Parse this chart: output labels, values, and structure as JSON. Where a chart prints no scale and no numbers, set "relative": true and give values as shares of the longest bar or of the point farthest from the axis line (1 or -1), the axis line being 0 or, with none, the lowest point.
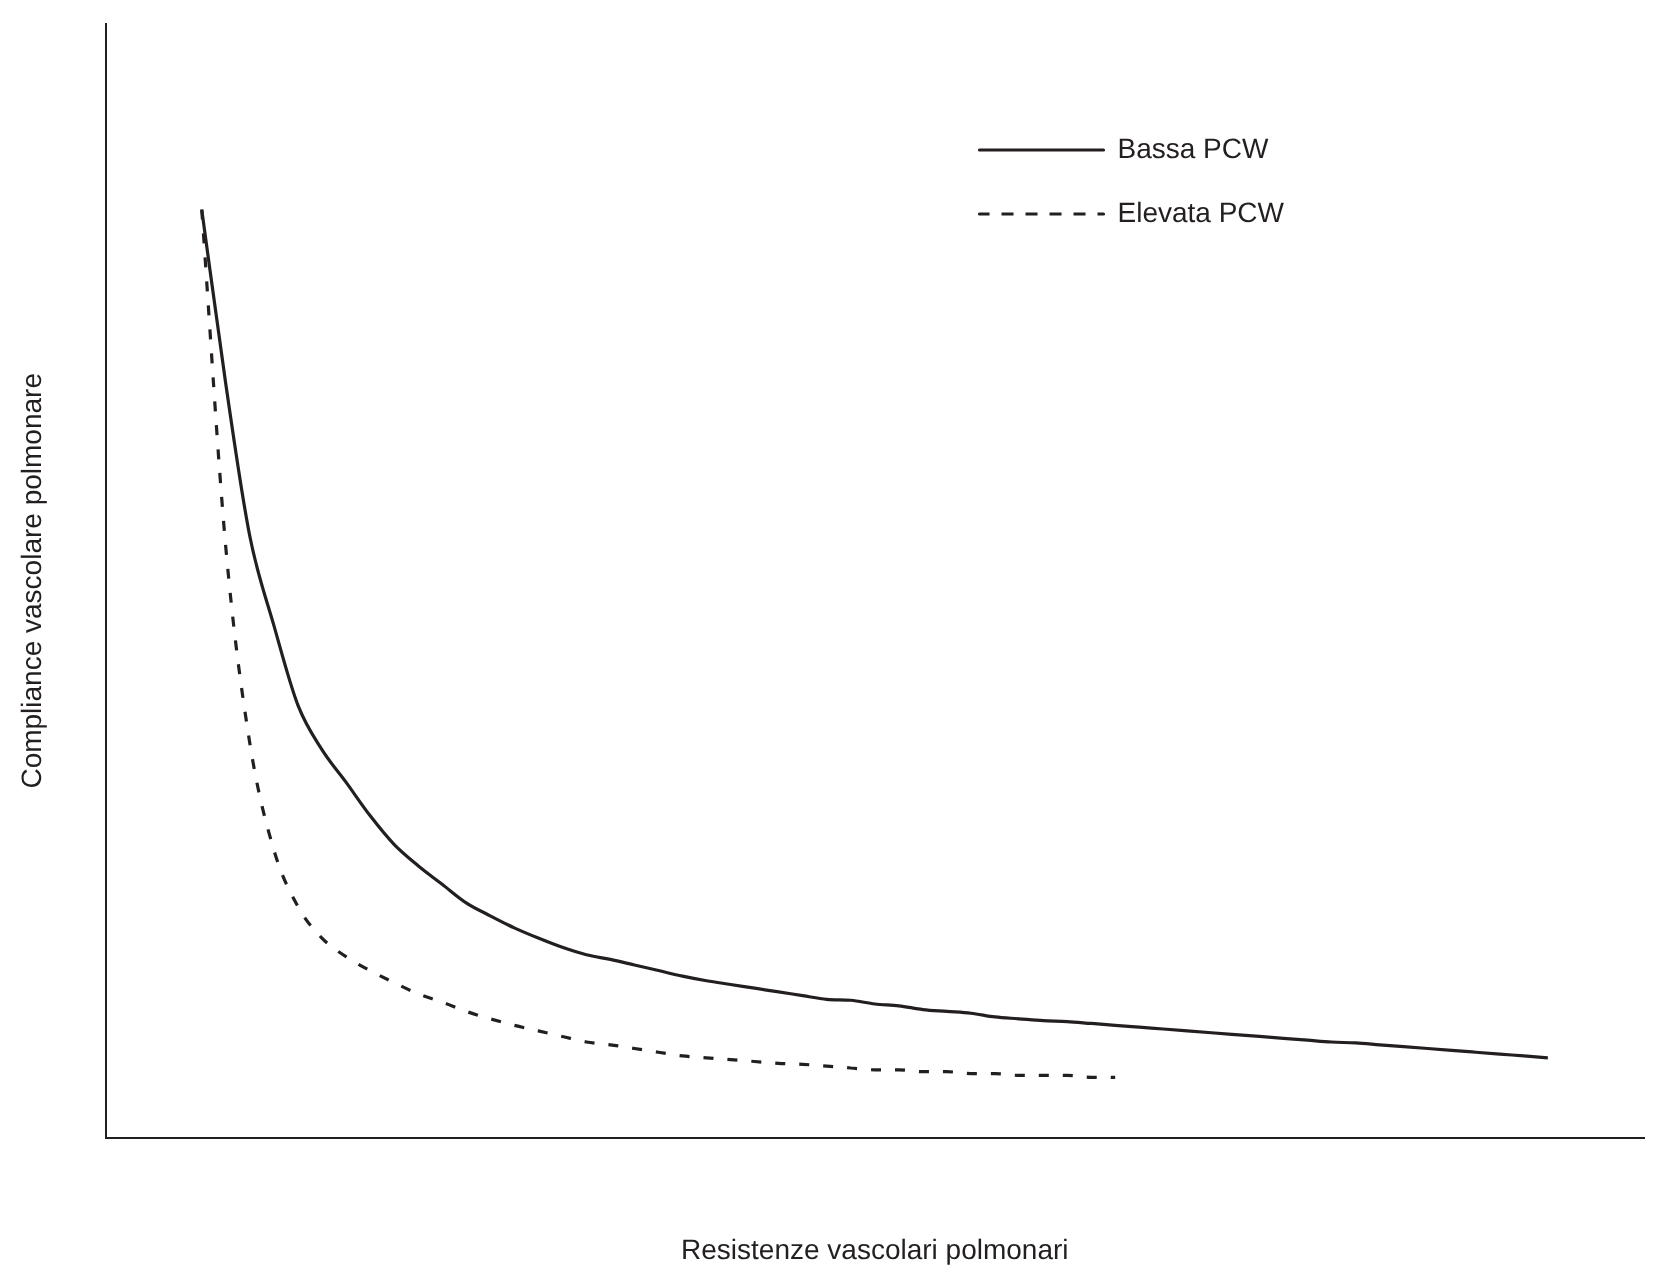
{
  "chart_data": {
    "type": "line",
    "relative": true,
    "xlabel": "Resistenze vascolari polmonari",
    "ylabel": "Compliance vascolare polmonare",
    "legend": "top right",
    "marker": "none",
    "grid": false,
    "categories": [
      null,
      null,
      null,
      null,
      null,
      null,
      null,
      null,
      null,
      null,
      null,
      null,
      null,
      null,
      null,
      null,
      null,
      null,
      null,
      null,
      null,
      null,
      null,
      null,
      null,
      null,
      null,
      null,
      null,
      null,
      null,
      null,
      null,
      null,
      null,
      null,
      null,
      null,
      null,
      null,
      null,
      null,
      null,
      null,
      null,
      null,
      null,
      null,
      null,
      null,
      null,
      null,
      null,
      null,
      null,
      null,
      null,
      null,
      null,
      null,
      null,
      null,
      null,
      null,
      null
    ],
    "series": [
      {
        "name": "Bassa PCW",
        "color": "#231f20",
        "line_style": "solid",
        "values": [
          null,
          null,
          null,
          null,
          1.0,
          0.812,
          0.648,
          0.552,
          0.466,
          0.418,
          0.383,
          0.347,
          0.316,
          0.293,
          0.273,
          0.253,
          0.239,
          0.226,
          0.215,
          0.205,
          0.197,
          0.192,
          0.186,
          0.18,
          0.174,
          0.169,
          0.165,
          0.161,
          0.157,
          0.153,
          0.149,
          0.148,
          0.144,
          0.142,
          0.138,
          0.136,
          0.134,
          0.13,
          0.128,
          0.126,
          0.125,
          0.123,
          0.121,
          0.119,
          0.117,
          0.115,
          0.113,
          0.111,
          0.109,
          0.107,
          0.105,
          0.103,
          0.102,
          0.1,
          0.098,
          0.096,
          0.094,
          0.092,
          0.09,
          0.088,
          0.086,
          null,
          null,
          null,
          null
        ]
      },
      {
        "name": "Elevata PCW",
        "color": "#231f20",
        "line_style": "dashed",
        "values": [
          null,
          null,
          null,
          null,
          1.0,
          0.636,
          0.425,
          0.31,
          0.249,
          0.215,
          0.195,
          0.18,
          0.167,
          0.155,
          0.146,
          0.136,
          0.128,
          0.121,
          0.115,
          0.109,
          0.103,
          0.1,
          0.096,
          0.092,
          0.088,
          0.086,
          0.084,
          0.082,
          0.08,
          0.079,
          0.077,
          0.075,
          0.073,
          0.073,
          0.071,
          0.071,
          0.069,
          0.069,
          0.067,
          0.067,
          0.067,
          0.065,
          0.065,
          null,
          null,
          null,
          null,
          null,
          null,
          null,
          null,
          null,
          null,
          null,
          null,
          null,
          null,
          null,
          null,
          null,
          null,
          null,
          null,
          null,
          null
        ]
      }
    ]
  }
}
